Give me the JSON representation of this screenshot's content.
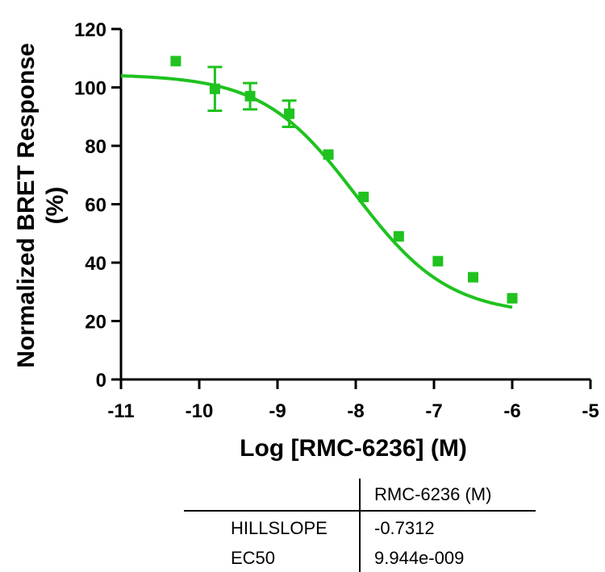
{
  "chart_data": {
    "type": "scatter",
    "xlabel": "Log [RMC-6236] (M)",
    "ylabel_line1": "Normalized BRET Response",
    "ylabel_line2": "(%)",
    "xlim": [
      -11,
      -5
    ],
    "ylim": [
      0,
      120
    ],
    "x_ticks": [
      -11,
      -10,
      -9,
      -8,
      -7,
      -6,
      -5
    ],
    "y_ticks": [
      0,
      20,
      40,
      60,
      80,
      100,
      120
    ],
    "x_tick_labels": [
      "-11",
      "-10",
      "-9",
      "-8",
      "-7",
      "-6",
      "-5"
    ],
    "y_tick_labels": [
      "0",
      "20",
      "40",
      "60",
      "80",
      "100",
      "120"
    ],
    "grid": false,
    "series": [
      {
        "color": "#1fc21f",
        "marker": "square",
        "points": [
          {
            "x": -10.3,
            "y": 109.0
          },
          {
            "x": -9.8,
            "y": 99.5,
            "err": 7.5
          },
          {
            "x": -9.35,
            "y": 97.0,
            "err": 4.5
          },
          {
            "x": -8.85,
            "y": 91.0,
            "err": 4.5
          },
          {
            "x": -8.35,
            "y": 77.0
          },
          {
            "x": -7.9,
            "y": 62.5
          },
          {
            "x": -7.45,
            "y": 49.0
          },
          {
            "x": -6.95,
            "y": 40.5
          },
          {
            "x": -6.5,
            "y": 35.0
          },
          {
            "x": -6.0,
            "y": 27.8
          }
        ],
        "fit": {
          "model": "sigmoidal dose-response (variable slope)",
          "x_range": [
            -11,
            -6
          ],
          "bottom": 22.0,
          "top": 104.5,
          "logEC50": -8.0025,
          "hillslope": -0.7312
        }
      }
    ]
  },
  "results_table": {
    "column_header": "RMC-6236 (M)",
    "rows": [
      {
        "label": "HILLSLOPE",
        "value": "-0.7312"
      },
      {
        "label": "EC50",
        "value": "9.944e-009"
      }
    ]
  }
}
